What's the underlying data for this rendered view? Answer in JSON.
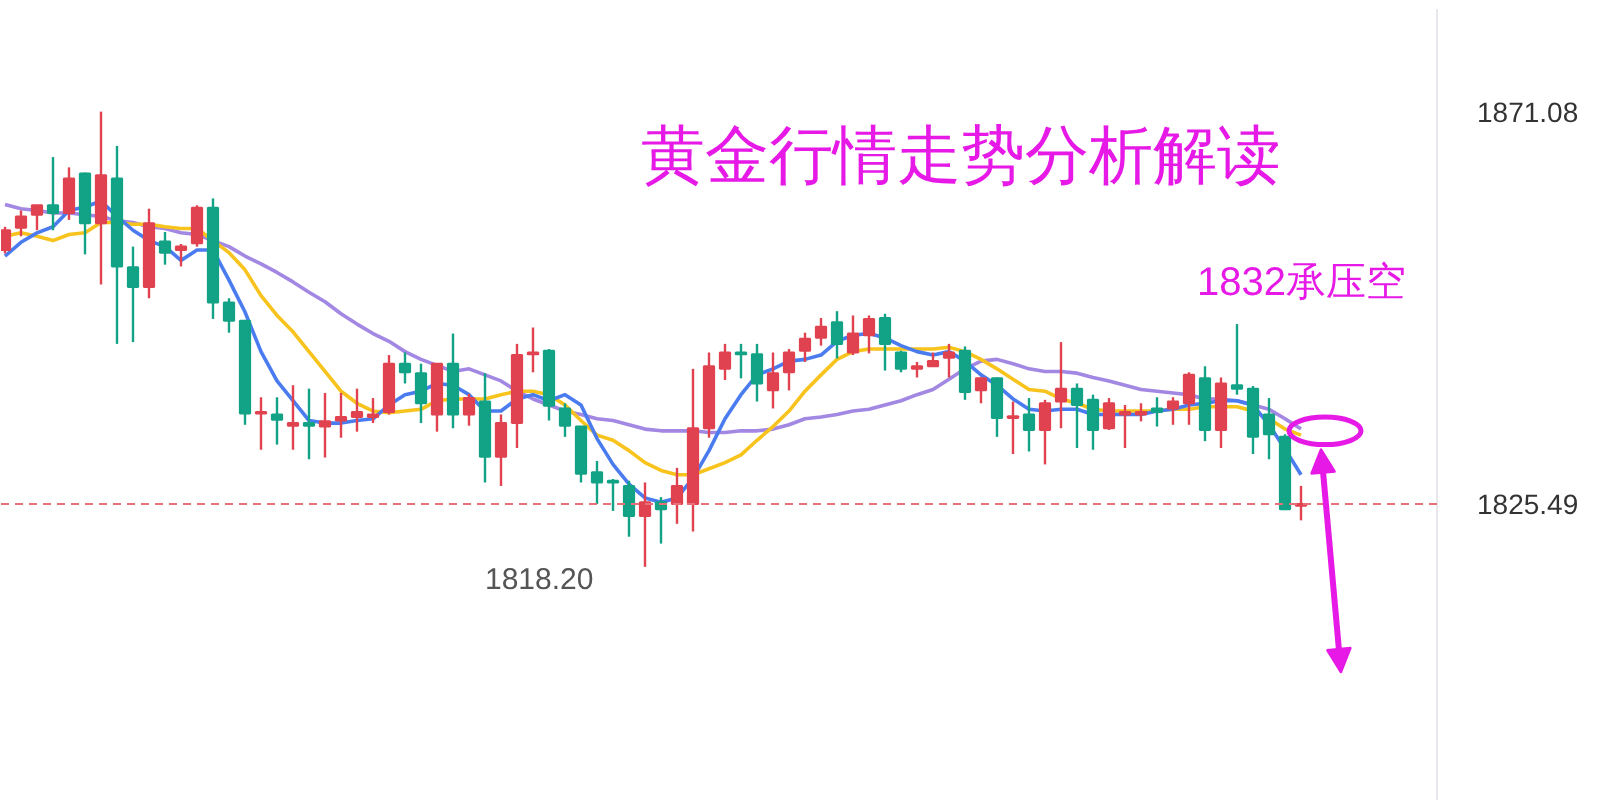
{
  "chart_data": {
    "type": "candlestick",
    "title": "黄金行情走势分析解读",
    "categories": [
      null,
      null,
      null,
      null,
      null,
      null,
      null,
      null,
      null,
      null,
      null,
      null,
      null,
      null,
      null,
      null,
      null,
      null,
      null,
      null,
      null,
      null,
      null,
      null,
      null,
      null,
      null,
      null,
      null,
      null,
      null,
      null,
      null,
      null,
      null,
      null,
      null,
      null,
      null,
      null,
      null,
      null,
      null,
      null,
      null,
      null,
      null,
      null,
      null,
      null,
      null,
      null,
      null,
      null,
      null,
      null,
      null,
      null,
      null,
      null,
      null,
      null,
      null,
      null,
      null,
      null,
      null,
      null,
      null,
      null,
      null,
      null,
      null,
      null,
      null,
      null,
      null,
      null,
      null,
      null,
      null,
      null
    ],
    "ohlc": [
      [
        1855.0,
        1857.7,
        1854.6,
        1857.3
      ],
      [
        1857.6,
        1859.6,
        1856.6,
        1858.9
      ],
      [
        1859.1,
        1860.2,
        1857.3,
        1860.2
      ],
      [
        1860.2,
        1865.8,
        1857.3,
        1859.3
      ],
      [
        1859.3,
        1864.6,
        1858.5,
        1863.3
      ],
      [
        1863.9,
        1864.0,
        1854.5,
        1858.1
      ],
      [
        1858.1,
        1871.08,
        1851.0,
        1863.7
      ],
      [
        1863.3,
        1867.1,
        1844.1,
        1853.1
      ],
      [
        1853.0,
        1855.4,
        1844.3,
        1850.7
      ],
      [
        1850.7,
        1859.8,
        1849.4,
        1858.1
      ],
      [
        1856.0,
        1857.1,
        1853.3,
        1854.7
      ],
      [
        1855.0,
        1855.7,
        1853.1,
        1855.4
      ],
      [
        1855.8,
        1860.2,
        1855.4,
        1859.9
      ],
      [
        1859.9,
        1861.0,
        1847.0,
        1848.9
      ],
      [
        1848.9,
        1849.4,
        1845.4,
        1846.8
      ],
      [
        1846.8,
        1846.8,
        1834.7,
        1836.0
      ],
      [
        1836.0,
        1837.9,
        1831.8,
        1836.2
      ],
      [
        1835.9,
        1837.9,
        1832.4,
        1835.3
      ],
      [
        1834.6,
        1839.3,
        1831.8,
        1834.9
      ],
      [
        1834.9,
        1838.9,
        1830.7,
        1834.6
      ],
      [
        1834.5,
        1838.4,
        1830.9,
        1835.1
      ],
      [
        1835.2,
        1838.4,
        1833.2,
        1835.6
      ],
      [
        1835.6,
        1838.9,
        1833.9,
        1836.2
      ],
      [
        1835.6,
        1837.8,
        1834.9,
        1835.9
      ],
      [
        1836.2,
        1842.8,
        1835.9,
        1841.8
      ],
      [
        1841.8,
        1843.1,
        1839.5,
        1840.8
      ],
      [
        1840.7,
        1841.8,
        1834.9,
        1837.2
      ],
      [
        1835.9,
        1841.8,
        1833.9,
        1841.8
      ],
      [
        1841.8,
        1845.3,
        1834.3,
        1835.9
      ],
      [
        1835.9,
        1838.3,
        1834.6,
        1837.8
      ],
      [
        1837.4,
        1840.7,
        1828.0,
        1831.0
      ],
      [
        1831.0,
        1835.9,
        1827.6,
        1834.9
      ],
      [
        1834.9,
        1844.1,
        1832.0,
        1842.8
      ],
      [
        1842.9,
        1846.0,
        1840.8,
        1843.1
      ],
      [
        1843.3,
        1843.5,
        1835.2,
        1836.9
      ],
      [
        1836.6,
        1837.2,
        1833.3,
        1834.6
      ],
      [
        1834.5,
        1834.5,
        1828.0,
        1829.0
      ],
      [
        1829.2,
        1830.5,
        1825.5,
        1828.0
      ],
      [
        1828.2,
        1828.4,
        1824.7,
        1828.0
      ],
      [
        1827.6,
        1828.2,
        1821.7,
        1824.1
      ],
      [
        1824.1,
        1828.0,
        1818.2,
        1825.7
      ],
      [
        1825.7,
        1826.3,
        1820.9,
        1824.9
      ],
      [
        1825.5,
        1829.7,
        1823.2,
        1827.6
      ],
      [
        1825.5,
        1841.2,
        1822.3,
        1834.3
      ],
      [
        1834.3,
        1843.1,
        1833.2,
        1841.5
      ],
      [
        1841.2,
        1844.1,
        1839.9,
        1843.1
      ],
      [
        1843.1,
        1844.1,
        1840.1,
        1842.9
      ],
      [
        1842.9,
        1844.1,
        1837.4,
        1839.5
      ],
      [
        1838.7,
        1843.1,
        1836.6,
        1840.7
      ],
      [
        1840.8,
        1843.5,
        1838.7,
        1843.1
      ],
      [
        1843.3,
        1845.4,
        1842.0,
        1844.7
      ],
      [
        1844.8,
        1847.1,
        1843.9,
        1846.1
      ],
      [
        1846.6,
        1847.9,
        1842.4,
        1844.1
      ],
      [
        1843.1,
        1847.4,
        1842.8,
        1845.3
      ],
      [
        1845.1,
        1847.4,
        1843.0,
        1847.0
      ],
      [
        1847.1,
        1847.6,
        1841.0,
        1844.1
      ],
      [
        1843.1,
        1843.3,
        1840.8,
        1841.2
      ],
      [
        1841.2,
        1842.0,
        1840.2,
        1841.5
      ],
      [
        1841.5,
        1843.1,
        1841.5,
        1842.1
      ],
      [
        1842.5,
        1844.1,
        1840.2,
        1843.1
      ],
      [
        1843.3,
        1843.8,
        1837.6,
        1838.5
      ],
      [
        1838.7,
        1840.2,
        1837.2,
        1840.1
      ],
      [
        1840.1,
        1840.2,
        1833.3,
        1835.5
      ],
      [
        1835.5,
        1837.4,
        1831.3,
        1835.7
      ],
      [
        1835.9,
        1837.8,
        1831.6,
        1834.1
      ],
      [
        1834.1,
        1837.6,
        1830.1,
        1837.2
      ],
      [
        1837.4,
        1844.3,
        1834.3,
        1838.9
      ],
      [
        1838.9,
        1839.5,
        1832.0,
        1837.0
      ],
      [
        1837.6,
        1838.2,
        1831.8,
        1834.1
      ],
      [
        1834.3,
        1837.8,
        1834.1,
        1837.2
      ],
      [
        1835.9,
        1837.0,
        1832.0,
        1836.2
      ],
      [
        1835.9,
        1837.2,
        1835.1,
        1836.2
      ],
      [
        1836.6,
        1837.9,
        1834.5,
        1836.2
      ],
      [
        1836.6,
        1837.9,
        1834.7,
        1837.4
      ],
      [
        1837.2,
        1840.8,
        1834.7,
        1840.5
      ],
      [
        1840.1,
        1841.5,
        1832.8,
        1834.1
      ],
      [
        1834.1,
        1840.2,
        1832.0,
        1839.5
      ],
      [
        1839.3,
        1846.4,
        1838.2,
        1838.9
      ],
      [
        1838.9,
        1839.2,
        1831.3,
        1833.3
      ],
      [
        1835.9,
        1837.8,
        1830.7,
        1833.6
      ],
      [
        1833.3,
        1833.6,
        1824.9,
        1824.9
      ],
      [
        1825.3,
        1827.6,
        1823.6,
        1825.49
      ]
    ],
    "colors": [
      "#e0424f",
      "#e0424f",
      "#e0424f",
      "#12a285",
      "#e0424f",
      "#12a285",
      "#e0424f",
      "#12a285",
      "#12a285",
      "#e0424f",
      "#12a285",
      "#e0424f",
      "#e0424f",
      "#12a285",
      "#12a285",
      "#12a285",
      "#e0424f",
      "#12a285",
      "#e0424f",
      "#12a285",
      "#e0424f",
      "#e0424f",
      "#e0424f",
      "#e0424f",
      "#e0424f",
      "#12a285",
      "#12a285",
      "#e0424f",
      "#12a285",
      "#e0424f",
      "#12a285",
      "#e0424f",
      "#e0424f",
      "#e0424f",
      "#12a285",
      "#12a285",
      "#12a285",
      "#12a285",
      "#12a285",
      "#12a285",
      "#e0424f",
      "#12a285",
      "#e0424f",
      "#e0424f",
      "#e0424f",
      "#e0424f",
      "#12a285",
      "#12a285",
      "#e0424f",
      "#e0424f",
      "#e0424f",
      "#e0424f",
      "#12a285",
      "#e0424f",
      "#e0424f",
      "#12a285",
      "#12a285",
      "#e0424f",
      "#e0424f",
      "#e0424f",
      "#12a285",
      "#e0424f",
      "#12a285",
      "#e0424f",
      "#12a285",
      "#e0424f",
      "#e0424f",
      "#12a285",
      "#12a285",
      "#e0424f",
      "#e0424f",
      "#e0424f",
      "#12a285",
      "#e0424f",
      "#e0424f",
      "#12a285",
      "#e0424f",
      "#12a285",
      "#12a285",
      "#12a285",
      "#12a285",
      "#e0424f"
    ],
    "series": [
      {
        "type": "line",
        "color": "#a287e3",
        "values": [
          1860.3,
          1859.8,
          1859.6,
          1859.3,
          1859.3,
          1859.1,
          1858.9,
          1858.4,
          1858.2,
          1857.7,
          1857.5,
          1857.0,
          1856.8,
          1856.1,
          1855.4,
          1854.3,
          1853.4,
          1852.4,
          1851.3,
          1850.1,
          1849.0,
          1847.6,
          1846.4,
          1845.3,
          1844.4,
          1843.2,
          1842.3,
          1841.6,
          1840.9,
          1841.2,
          1840.5,
          1839.8,
          1838.6,
          1837.7,
          1837.0,
          1836.3,
          1835.9,
          1835.4,
          1835.2,
          1834.7,
          1834.2,
          1834.0,
          1834.0,
          1834.0,
          1833.8,
          1833.8,
          1834.0,
          1834.0,
          1834.2,
          1834.7,
          1835.4,
          1835.6,
          1835.9,
          1836.3,
          1836.5,
          1837.0,
          1837.5,
          1838.2,
          1838.8,
          1840.0,
          1841.2,
          1842.1,
          1842.3,
          1841.8,
          1841.2,
          1840.9,
          1840.9,
          1840.7,
          1840.2,
          1839.8,
          1839.3,
          1838.8,
          1838.6,
          1838.4,
          1838.2,
          1837.7,
          1837.7,
          1837.5,
          1837.0,
          1836.5,
          1835.4,
          1834.2
        ]
      },
      {
        "type": "line",
        "color": "#f7c31c",
        "values": [
          1856.6,
          1857.0,
          1856.6,
          1856.1,
          1856.8,
          1857.0,
          1858.2,
          1858.2,
          1858.0,
          1858.0,
          1857.7,
          1857.5,
          1857.5,
          1856.1,
          1854.7,
          1852.7,
          1849.7,
          1847.4,
          1845.5,
          1843.2,
          1840.9,
          1838.6,
          1837.2,
          1836.3,
          1836.1,
          1836.3,
          1836.5,
          1837.5,
          1837.7,
          1837.7,
          1837.7,
          1838.2,
          1838.6,
          1838.6,
          1838.2,
          1837.0,
          1835.2,
          1833.5,
          1832.9,
          1831.7,
          1830.3,
          1829.4,
          1828.9,
          1828.9,
          1829.6,
          1830.3,
          1831.2,
          1832.9,
          1834.5,
          1836.3,
          1838.6,
          1840.5,
          1842.3,
          1843.2,
          1843.5,
          1843.5,
          1843.5,
          1843.5,
          1843.5,
          1843.7,
          1843.2,
          1842.3,
          1841.2,
          1840.0,
          1838.8,
          1838.6,
          1837.7,
          1837.2,
          1836.5,
          1836.3,
          1836.3,
          1836.3,
          1836.3,
          1836.5,
          1836.5,
          1836.8,
          1836.8,
          1836.8,
          1836.3,
          1835.4,
          1834.2,
          1833.5
        ]
      },
      {
        "type": "line",
        "color": "#4a7cf0",
        "values": [
          1854.3,
          1855.9,
          1857.0,
          1857.7,
          1859.6,
          1860.0,
          1860.7,
          1858.9,
          1857.3,
          1856.1,
          1855.4,
          1853.8,
          1855.0,
          1855.0,
          1851.5,
          1847.8,
          1843.2,
          1839.8,
          1837.5,
          1835.2,
          1834.9,
          1834.9,
          1835.2,
          1835.4,
          1837.0,
          1838.2,
          1838.6,
          1839.5,
          1839.3,
          1838.2,
          1836.3,
          1836.3,
          1837.7,
          1838.2,
          1837.5,
          1838.2,
          1837.0,
          1833.1,
          1830.1,
          1827.8,
          1826.2,
          1825.7,
          1826.2,
          1828.5,
          1831.7,
          1835.4,
          1838.2,
          1840.5,
          1841.2,
          1842.1,
          1842.3,
          1842.8,
          1844.4,
          1845.1,
          1845.3,
          1844.8,
          1843.9,
          1843.2,
          1842.8,
          1843.2,
          1842.1,
          1840.5,
          1839.3,
          1837.7,
          1836.5,
          1836.3,
          1836.5,
          1836.5,
          1835.9,
          1835.9,
          1835.9,
          1835.9,
          1836.3,
          1836.5,
          1837.0,
          1837.2,
          1837.5,
          1837.5,
          1837.0,
          1834.7,
          1831.9,
          1828.9
        ]
      }
    ],
    "ylim": [
      1791,
      1883
    ],
    "yticks": [
      1871.08,
      1825.49
    ],
    "ref_lines": [
      {
        "axis": "y",
        "value": 1825.49,
        "color": "#e8707a",
        "line_style": "dashed"
      }
    ],
    "annotations": [
      "1818.20",
      "1832承压空"
    ]
  }
}
